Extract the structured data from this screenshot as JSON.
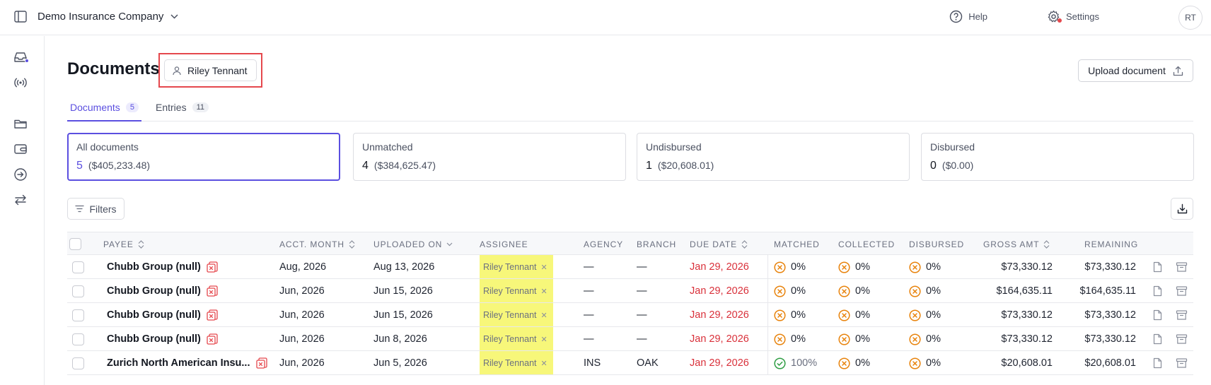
{
  "header": {
    "company": "Demo Insurance Company",
    "help_label": "Help",
    "settings_label": "Settings",
    "avatar_initials": "RT"
  },
  "page": {
    "title": "Documents",
    "assignee_filter": "Riley Tennant",
    "upload_label": "Upload document"
  },
  "tabs": [
    {
      "label": "Documents",
      "count": "5"
    },
    {
      "label": "Entries",
      "count": "11"
    }
  ],
  "summary": [
    {
      "label": "All documents",
      "count": "5",
      "amount": "($405,233.48)"
    },
    {
      "label": "Unmatched",
      "count": "4",
      "amount": "($384,625.47)"
    },
    {
      "label": "Undisbursed",
      "count": "1",
      "amount": "($20,608.01)"
    },
    {
      "label": "Disbursed",
      "count": "0",
      "amount": "($0.00)"
    }
  ],
  "toolbar": {
    "filters_label": "Filters"
  },
  "table": {
    "columns": {
      "payee": "PAYEE",
      "acct_month": "ACCT. MONTH",
      "uploaded_on": "UPLOADED ON",
      "assignee": "ASSIGNEE",
      "agency": "AGENCY",
      "branch": "BRANCH",
      "due_date": "DUE DATE",
      "matched": "MATCHED",
      "collected": "COLLECTED",
      "disbursed": "DISBURSED",
      "gross_amt": "GROSS AMT",
      "remaining": "REMAINING"
    },
    "rows": [
      {
        "payee": "Chubb Group (null)",
        "acct_month": "Aug, 2026",
        "uploaded_on": "Aug 13, 2026",
        "assignee": "Riley Tennant",
        "agency": "—",
        "branch": "—",
        "due_date": "Jan 29, 2026",
        "matched": "0%",
        "collected": "0%",
        "disbursed": "0%",
        "gross_amt": "$73,330.12",
        "remaining": "$73,330.12"
      },
      {
        "payee": "Chubb Group (null)",
        "acct_month": "Jun, 2026",
        "uploaded_on": "Jun 15, 2026",
        "assignee": "Riley Tennant",
        "agency": "—",
        "branch": "—",
        "due_date": "Jan 29, 2026",
        "matched": "0%",
        "collected": "0%",
        "disbursed": "0%",
        "gross_amt": "$164,635.11",
        "remaining": "$164,635.11"
      },
      {
        "payee": "Chubb Group (null)",
        "acct_month": "Jun, 2026",
        "uploaded_on": "Jun 15, 2026",
        "assignee": "Riley Tennant",
        "agency": "—",
        "branch": "—",
        "due_date": "Jan 29, 2026",
        "matched": "0%",
        "collected": "0%",
        "disbursed": "0%",
        "gross_amt": "$73,330.12",
        "remaining": "$73,330.12"
      },
      {
        "payee": "Chubb Group (null)",
        "acct_month": "Jun, 2026",
        "uploaded_on": "Jun 8, 2026",
        "assignee": "Riley Tennant",
        "agency": "—",
        "branch": "—",
        "due_date": "Jan 29, 2026",
        "matched": "0%",
        "collected": "0%",
        "disbursed": "0%",
        "gross_amt": "$73,330.12",
        "remaining": "$73,330.12"
      },
      {
        "payee": "Zurich North American Insu...",
        "acct_month": "Jun, 2026",
        "uploaded_on": "Jun 5, 2026",
        "assignee": "Riley Tennant",
        "agency": "INS",
        "branch": "OAK",
        "due_date": "Jan 29, 2026",
        "matched": "100%",
        "collected": "0%",
        "disbursed": "0%",
        "gross_amt": "$20,608.01",
        "remaining": "$20,608.01"
      }
    ]
  },
  "colors": {
    "accent": "#5b4fe0",
    "due_date": "#d9303a",
    "pending_icon": "#e8830c",
    "complete_icon": "#2f9e44",
    "assignee_highlight": "#f7f77a",
    "annotation_box": "#e5484d"
  }
}
